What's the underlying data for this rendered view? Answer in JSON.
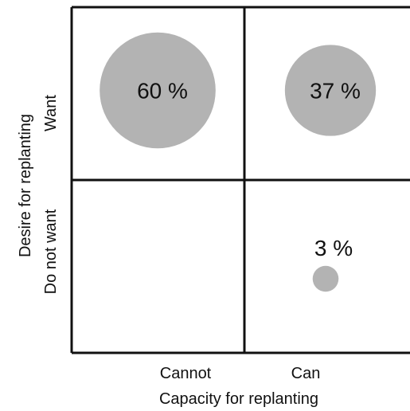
{
  "chart_data": {
    "type": "scatter",
    "x_categories": [
      "Cannot",
      "Can"
    ],
    "y_categories": [
      "Want",
      "Do not want"
    ],
    "xlabel": "Capacity for replanting",
    "ylabel": "Desire for replanting",
    "grid": true,
    "points": [
      {
        "x": "Cannot",
        "y": "Want",
        "value": 60,
        "label": "60 %"
      },
      {
        "x": "Can",
        "y": "Want",
        "value": 37,
        "label": "37 %"
      },
      {
        "x": "Can",
        "y": "Do not want",
        "value": 3,
        "label": "3 %"
      }
    ],
    "bubble_color": "#b3b3b3",
    "line_color": "#111111"
  }
}
